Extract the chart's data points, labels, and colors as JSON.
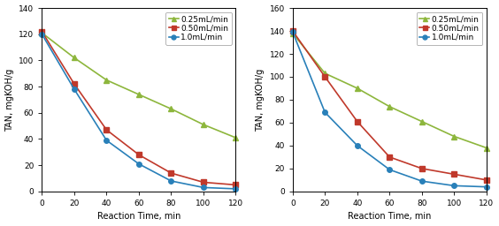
{
  "left": {
    "x": [
      0,
      20,
      40,
      60,
      80,
      100,
      120
    ],
    "y_025": [
      121,
      102,
      85,
      74,
      63,
      51,
      41
    ],
    "y_050": [
      122,
      82,
      47,
      28,
      14,
      7,
      5
    ],
    "y_10": [
      120,
      78,
      39,
      21,
      8,
      3,
      2
    ],
    "ylim": [
      0,
      140
    ],
    "yticks": [
      0,
      20,
      40,
      60,
      80,
      100,
      120,
      140
    ]
  },
  "right": {
    "x": [
      0,
      20,
      40,
      60,
      80,
      100,
      120
    ],
    "y_025": [
      138,
      103,
      90,
      74,
      61,
      48,
      38
    ],
    "y_050": [
      140,
      100,
      61,
      30,
      20,
      15,
      10
    ],
    "y_10": [
      139,
      69,
      40,
      19,
      9,
      5,
      4
    ],
    "ylim": [
      0,
      160
    ],
    "yticks": [
      0,
      20,
      40,
      60,
      80,
      100,
      120,
      140,
      160
    ]
  },
  "xlabel": "Reaction Time, min",
  "ylabel": "TAN, mgKOH/g",
  "xticks": [
    0,
    20,
    40,
    60,
    80,
    100,
    120
  ],
  "legend_labels": [
    "0.25mL/min",
    "0.50mL/min",
    "1.0mL/min"
  ],
  "color_025": "#8db63c",
  "color_050": "#c0392b",
  "color_10": "#2980b9",
  "marker_025": "^",
  "marker_050": "s",
  "marker_10": "o",
  "linewidth": 1.2,
  "markersize": 4,
  "bg_color": "#ffffff",
  "fig_bg_color": "#ffffff",
  "fontsize_label": 7,
  "fontsize_tick": 6.5,
  "fontsize_legend": 6.5
}
